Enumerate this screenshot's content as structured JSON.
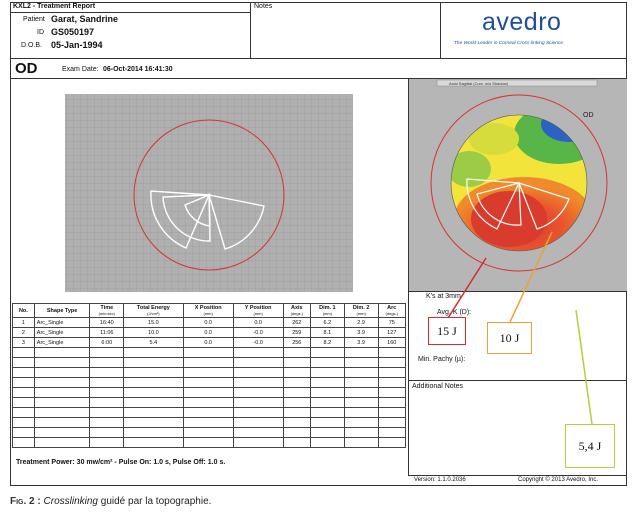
{
  "header": {
    "report_title": "KXL2 - Treatment Report",
    "patient_label": "Patient",
    "patient_name": "Garat, Sandrine",
    "id_label": "ID",
    "id_value": "GS050197",
    "dob_label": "D.O.B.",
    "dob_value": "05-Jan-1994",
    "notes_label": "Notes",
    "brand": "avedro",
    "tagline": "The World Leader in Corneal Cross-linking Science"
  },
  "exam": {
    "eye": "OD",
    "exam_date_label": "Exam Date:",
    "exam_date_value": "06-Oct-2014 16:41:30"
  },
  "topo": {
    "dropdown_text": "Axial Sagittal (Curv. w/o Shadow)",
    "eye_label": "OD",
    "ks_label": "K's at 3mm",
    "avg_k_label": "Avg. K (D):",
    "min_pachy_label": "Min. Pachy (µ):",
    "additional_notes_label": "Additional Notes",
    "map_colors": {
      "red": "#d93b2c",
      "orange": "#f08a2a",
      "yellow": "#f2e43a",
      "green": "#58b548",
      "blue": "#2b62c4"
    }
  },
  "table": {
    "headers": [
      "No.",
      "Shape Type",
      "Time",
      "Total Energy",
      "X Position",
      "Y Position",
      "Axis",
      "Dim. 1",
      "Dim. 2",
      "Arc"
    ],
    "units": [
      "",
      "",
      "(min:sec)",
      "(J/cm²)",
      "(mm)",
      "(mm)",
      "(degs.)",
      "(mm)",
      "(mm)",
      "(degs.)"
    ],
    "rows": [
      [
        "1",
        "Arc_Single",
        "16:40",
        "15.0",
        "0.0",
        "0.0",
        "262",
        "6.2",
        "2.9",
        "75"
      ],
      [
        "2",
        "Arc_Single",
        "11:06",
        "10.0",
        "0.0",
        "-0.0",
        "259",
        "8.1",
        "3.9",
        "127"
      ],
      [
        "3",
        "Arc_Single",
        "6:00",
        "5.4",
        "0.0",
        "-0.0",
        "256",
        "8.2",
        "3.9",
        "160"
      ]
    ]
  },
  "footer": {
    "treatment_power": "Treatment Power:   30 mw/cm² - Pulse On: 1.0 s, Pulse Off: 1.0 s.",
    "version": "Version: 1.1.0.2036",
    "copyright": "Copyright © 2013 Avedro, Inc."
  },
  "annotations": {
    "label_15": "15 J",
    "label_10": "10 J",
    "label_54": "5,4 J",
    "color_15": "#d62b2b",
    "color_10": "#e8a33a",
    "color_54": "#b5cf3a"
  },
  "caption": {
    "prefix": "Fig. 2 :",
    "italic": "Crosslinking",
    "rest": " guidé par la topographie."
  }
}
